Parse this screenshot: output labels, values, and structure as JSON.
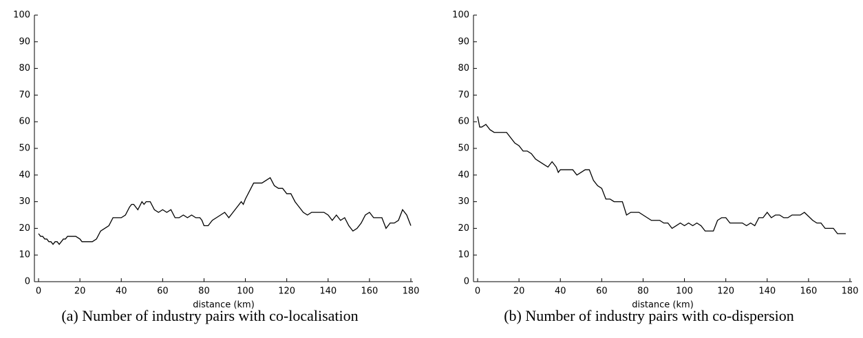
{
  "chart_data": [
    {
      "type": "line",
      "x_label": "distance (km)",
      "caption": "(a) Number of industry pairs with co-localisation",
      "xlim": [
        -2,
        181
      ],
      "ylim": [
        0,
        100
      ],
      "xticks": [
        0,
        20,
        40,
        60,
        80,
        100,
        120,
        140,
        160,
        180
      ],
      "yticks": [
        0,
        10,
        20,
        30,
        40,
        50,
        60,
        70,
        80,
        90,
        100
      ],
      "x": [
        0,
        1,
        2,
        3,
        4,
        5,
        6,
        7,
        8,
        9,
        10,
        11,
        12,
        13,
        14,
        16,
        18,
        20,
        21,
        26,
        28,
        30,
        32,
        34,
        36,
        40,
        42,
        44,
        45,
        46,
        48,
        50,
        51,
        52,
        54,
        56,
        58,
        60,
        62,
        64,
        66,
        68,
        70,
        72,
        74,
        76,
        78,
        79,
        80,
        82,
        84,
        86,
        88,
        90,
        92,
        94,
        96,
        98,
        99,
        100,
        102,
        104,
        108,
        110,
        112,
        114,
        116,
        118,
        120,
        122,
        124,
        126,
        128,
        130,
        132,
        138,
        140,
        142,
        144,
        146,
        148,
        150,
        152,
        154,
        156,
        158,
        160,
        162,
        166,
        168,
        170,
        172,
        174,
        176,
        178,
        180
      ],
      "series": [
        {
          "color": "#000000",
          "values": [
            18,
            17,
            17,
            16,
            16,
            15,
            15,
            14,
            15,
            15,
            14,
            15,
            16,
            16,
            17,
            17,
            17,
            16,
            15,
            15,
            16,
            19,
            20,
            21,
            24,
            24,
            25,
            28,
            29,
            29,
            27,
            30,
            29,
            30,
            30,
            27,
            26,
            27,
            26,
            27,
            24,
            24,
            25,
            24,
            25,
            24,
            24,
            23,
            21,
            21,
            23,
            24,
            25,
            26,
            24,
            26,
            28,
            30,
            29,
            31,
            34,
            37,
            37,
            38,
            39,
            36,
            35,
            35,
            33,
            33,
            30,
            28,
            26,
            25,
            26,
            26,
            25,
            23,
            25,
            23,
            24,
            21,
            19,
            20,
            22,
            25,
            26,
            24,
            24,
            20,
            22,
            22,
            23,
            27,
            25,
            21
          ]
        }
      ]
    },
    {
      "type": "line",
      "x_label": "distance (km)",
      "caption": "(b) Number of industry pairs with co-dispersion",
      "xlim": [
        -2,
        181
      ],
      "ylim": [
        0,
        100
      ],
      "xticks": [
        0,
        20,
        40,
        60,
        80,
        100,
        120,
        140,
        160,
        180
      ],
      "yticks": [
        0,
        10,
        20,
        30,
        40,
        50,
        60,
        70,
        80,
        90,
        100
      ],
      "x": [
        0,
        1,
        2,
        4,
        6,
        8,
        14,
        18,
        20,
        22,
        24,
        26,
        28,
        30,
        32,
        34,
        36,
        38,
        39,
        40,
        46,
        48,
        50,
        52,
        54,
        56,
        58,
        60,
        62,
        64,
        66,
        70,
        72,
        74,
        78,
        80,
        82,
        84,
        88,
        90,
        92,
        94,
        96,
        98,
        100,
        102,
        104,
        106,
        108,
        110,
        114,
        116,
        118,
        120,
        122,
        128,
        130,
        132,
        134,
        136,
        138,
        140,
        142,
        144,
        146,
        148,
        150,
        152,
        156,
        158,
        162,
        164,
        166,
        168,
        172,
        174,
        178
      ],
      "series": [
        {
          "color": "#000000",
          "values": [
            62,
            58,
            58,
            59,
            57,
            56,
            56,
            52,
            51,
            49,
            49,
            48,
            46,
            45,
            44,
            43,
            45,
            43,
            41,
            42,
            42,
            40,
            41,
            42,
            42,
            38,
            36,
            35,
            31,
            31,
            30,
            30,
            25,
            26,
            26,
            25,
            24,
            23,
            23,
            22,
            22,
            20,
            21,
            22,
            21,
            22,
            21,
            22,
            21,
            19,
            19,
            23,
            24,
            24,
            22,
            22,
            21,
            22,
            21,
            24,
            24,
            26,
            24,
            25,
            25,
            24,
            24,
            25,
            25,
            26,
            23,
            22,
            22,
            20,
            20,
            18,
            18
          ]
        }
      ]
    }
  ]
}
